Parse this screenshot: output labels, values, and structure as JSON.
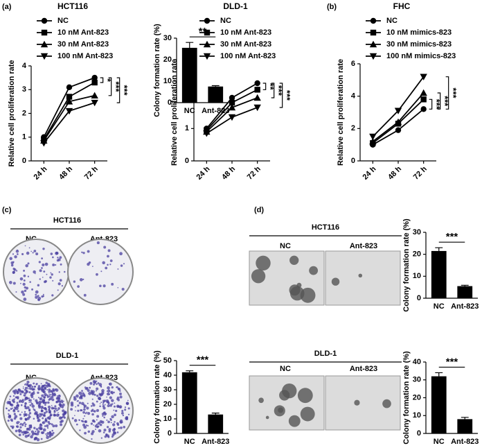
{
  "panel_labels": [
    "(a)",
    "(b)",
    "(c)",
    "(d)"
  ],
  "image_panels": [
    {
      "title": "HCT116",
      "labels": [
        "NC",
        "Ant-823"
      ]
    },
    {
      "title": "DLD-1",
      "labels": [
        "NC",
        "Ant-823"
      ]
    },
    {
      "title": "HCT116",
      "labels": [
        "NC",
        "Ant-823"
      ]
    },
    {
      "title": "DLD-1",
      "labels": [
        "NC",
        "Ant-823"
      ]
    }
  ],
  "chart_data": [
    {
      "type": "line",
      "title": "HCT116",
      "y_label": "Relative cell proliferation rate",
      "categories": [
        "24 h",
        "48 h",
        "72 h"
      ],
      "series": [
        {
          "name": "NC",
          "color": "#000000",
          "marker": "circle",
          "values": [
            1.0,
            3.1,
            3.5
          ]
        },
        {
          "name": "10 nM Ant-823",
          "color": "#000000",
          "marker": "square",
          "values": [
            0.9,
            2.7,
            3.3
          ]
        },
        {
          "name": "30 nM Ant-823",
          "color": "#000000",
          "marker": "triangle",
          "values": [
            0.85,
            2.5,
            2.75
          ]
        },
        {
          "name": "100 nM Ant-823",
          "color": "#000000",
          "marker": "triangle-down",
          "values": [
            0.75,
            2.1,
            2.45
          ]
        }
      ],
      "ylim": [
        0,
        4
      ],
      "yticks": [
        0,
        1,
        2,
        3,
        4
      ],
      "annotations": [
        "*",
        "***",
        "***"
      ]
    },
    {
      "type": "line",
      "title": "DLD-1",
      "y_label": "Relative cell proliferation rate",
      "categories": [
        "24 h",
        "48 h",
        "72 h"
      ],
      "series": [
        {
          "name": "NC",
          "color": "#000000",
          "marker": "circle",
          "values": [
            1.0,
            1.95,
            2.4
          ]
        },
        {
          "name": "10 nM Ant-823",
          "color": "#000000",
          "marker": "square",
          "values": [
            0.95,
            1.8,
            2.2
          ]
        },
        {
          "name": "30 nM Ant-823",
          "color": "#000000",
          "marker": "triangle",
          "values": [
            0.9,
            1.65,
            1.95
          ]
        },
        {
          "name": "100 nM Ant-823",
          "color": "#000000",
          "marker": "triangle-down",
          "values": [
            0.85,
            1.35,
            1.65
          ]
        }
      ],
      "ylim": [
        0,
        3
      ],
      "yticks": [
        0,
        1,
        2,
        3
      ],
      "annotations": [
        "**",
        "***",
        "***"
      ]
    },
    {
      "type": "line",
      "title": "FHC",
      "y_label": "Relative cell proliferation rate",
      "categories": [
        "24 h",
        "48 h",
        "72 h"
      ],
      "series": [
        {
          "name": "NC",
          "color": "#000000",
          "marker": "circle",
          "values": [
            1.0,
            1.9,
            3.2
          ]
        },
        {
          "name": "10 nM mimics-823",
          "color": "#000000",
          "marker": "square",
          "values": [
            1.1,
            2.3,
            3.8
          ]
        },
        {
          "name": "30 nM mimics-823",
          "color": "#000000",
          "marker": "triangle",
          "values": [
            1.2,
            2.4,
            4.2
          ]
        },
        {
          "name": "100 nM mimics-823",
          "color": "#000000",
          "marker": "triangle-down",
          "values": [
            1.5,
            3.1,
            5.2
          ]
        }
      ],
      "ylim": [
        0,
        6
      ],
      "yticks": [
        0,
        2,
        4,
        6
      ],
      "annotations": [
        "***",
        "***",
        "***"
      ]
    },
    {
      "type": "bar",
      "y_label": "Colony formation rate (%)",
      "categories": [
        "NC",
        "Ant-823"
      ],
      "values": [
        25.5,
        7.5
      ],
      "errors": [
        2.5,
        0.4
      ],
      "color": "#000000",
      "ylim": [
        0,
        30
      ],
      "yticks": [
        0,
        10,
        20,
        30
      ],
      "annotation": "**"
    },
    {
      "type": "bar",
      "y_label": "Colony formation rate (%)",
      "categories": [
        "NC",
        "Ant-823"
      ],
      "values": [
        42,
        13
      ],
      "errors": [
        1,
        1
      ],
      "color": "#000000",
      "ylim": [
        0,
        50
      ],
      "yticks": [
        0,
        10,
        20,
        30,
        40,
        50
      ],
      "annotation": "***"
    },
    {
      "type": "bar",
      "y_label": "Colony formation rate (%)",
      "categories": [
        "NC",
        "Ant-823"
      ],
      "values": [
        21.5,
        5.5
      ],
      "errors": [
        1.5,
        0.4
      ],
      "color": "#000000",
      "ylim": [
        0,
        30
      ],
      "yticks": [
        0,
        10,
        20,
        30
      ],
      "annotation": "***"
    },
    {
      "type": "bar",
      "y_label": "Colony formation rate (%)",
      "categories": [
        "NC",
        "Ant-823"
      ],
      "values": [
        32,
        8
      ],
      "errors": [
        2,
        1
      ],
      "color": "#000000",
      "ylim": [
        0,
        40
      ],
      "yticks": [
        0,
        10,
        20,
        30,
        40
      ],
      "annotation": "***"
    }
  ]
}
